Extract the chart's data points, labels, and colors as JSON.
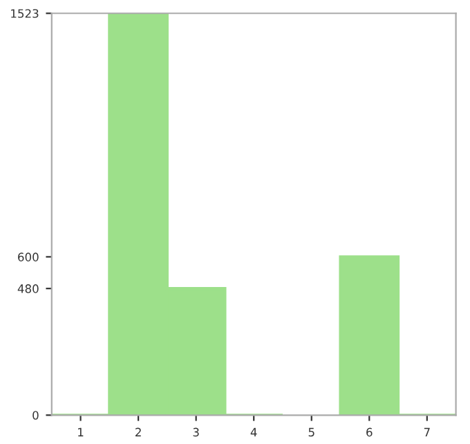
{
  "chart_data": {
    "type": "bar",
    "categories": [
      "1",
      "2",
      "3",
      "4",
      "5",
      "6",
      "7"
    ],
    "values": [
      0,
      1523,
      480,
      0,
      null,
      600,
      0
    ],
    "color": "#9de08a",
    "ylim": [
      0,
      1523
    ],
    "yticks": [
      0,
      480,
      600,
      1523
    ],
    "grid": false
  }
}
